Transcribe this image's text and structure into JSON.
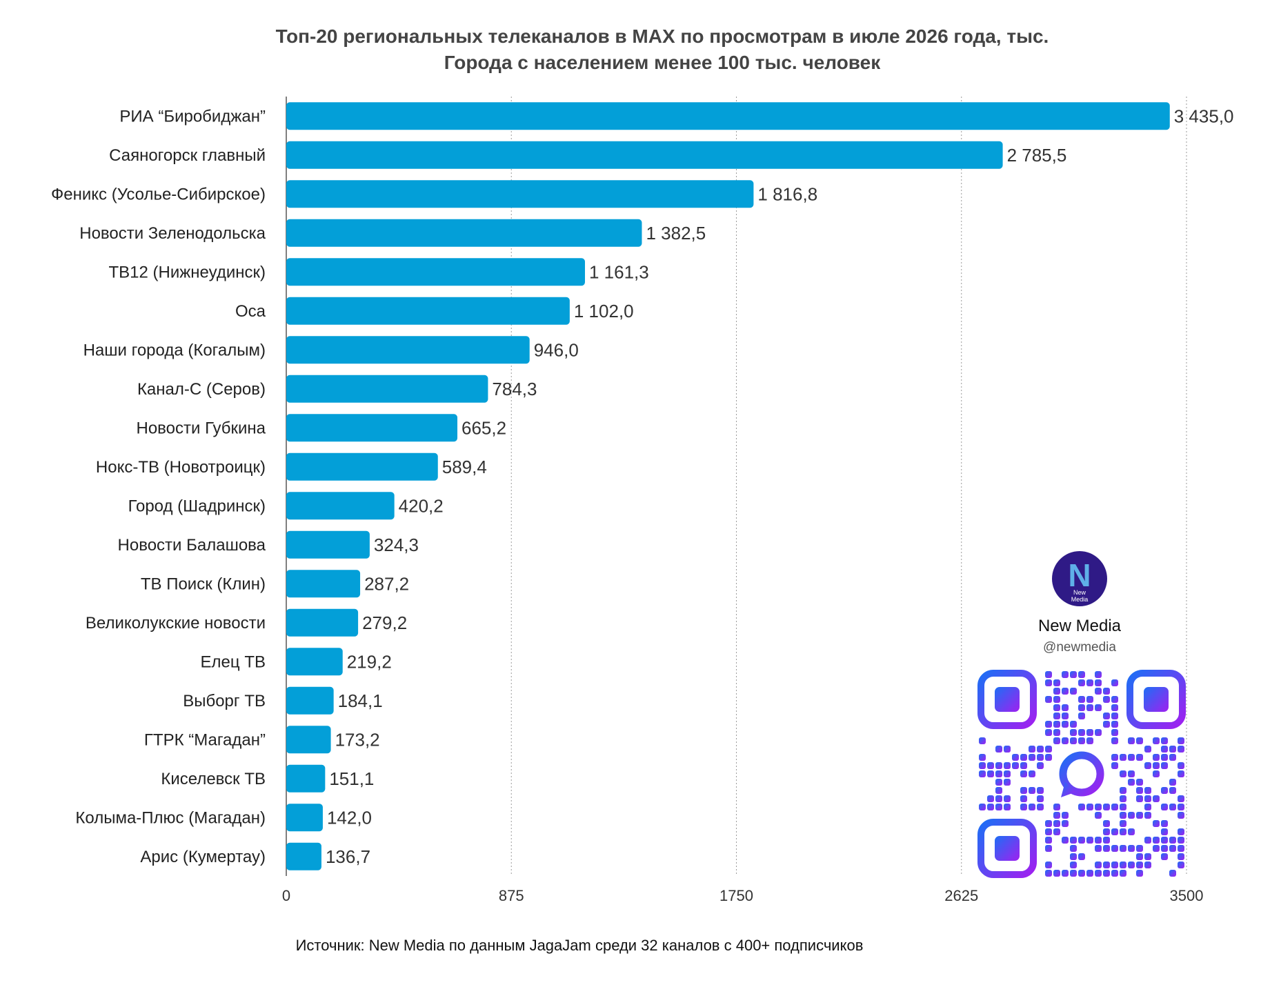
{
  "chart_data": {
    "type": "bar",
    "orientation": "horizontal",
    "title": "Топ-20 региональных телеканалов в MAX по просмотрам в июле 2026 года, тыс.",
    "subtitle": "Города с населением менее 100 тыс. человек",
    "categories": [
      "РИА “Биробиджан”",
      "Саяногорск главный",
      "Феникс (Усолье-Сибирское)",
      "Новости Зеленодольска",
      "ТВ12 (Нижнеудинск)",
      "Оса",
      "Наши города (Когалым)",
      "Канал-С (Серов)",
      "Новости Губкина",
      "Нокс-ТВ (Новотроицк)",
      "Город (Шадринск)",
      "Новости Балашова",
      "ТВ Поиск (Клин)",
      "Великолукские новости",
      "Елец ТВ",
      "Выборг ТВ",
      "ГТРК “Магадан”",
      "Киселевск ТВ",
      "Колыма-Плюс (Магадан)",
      "Арис (Кумертау)"
    ],
    "values": [
      3435.0,
      2785.5,
      1816.8,
      1382.5,
      1161.3,
      1102.0,
      946.0,
      784.3,
      665.2,
      589.4,
      420.2,
      324.3,
      287.2,
      279.2,
      219.2,
      184.1,
      173.2,
      151.1,
      142.0,
      136.7
    ],
    "value_labels": [
      "3 435,0",
      "2 785,5",
      "1 816,8",
      "1 382,5",
      "1 161,3",
      "1 102,0",
      "946,0",
      "784,3",
      "665,2",
      "589,4",
      "420,2",
      "324,3",
      "287,2",
      "279,2",
      "219,2",
      "184,1",
      "173,2",
      "151,1",
      "142,0",
      "136,7"
    ],
    "xlim": [
      0,
      3500
    ],
    "x_ticks": [
      "0",
      "875",
      "1750",
      "2625",
      "3500"
    ],
    "x_tick_values": [
      0,
      875,
      1750,
      2625,
      3500
    ],
    "grid": "vertical dotted",
    "bar_color": "#039fd8",
    "source": "Источник: New Media по данным JagaJam среди 32 каналов с 400+ подписчиков"
  },
  "branding": {
    "name": "New Media",
    "handle": "@newmedia",
    "logo_letter": "N",
    "logo_caption_line1": "New",
    "logo_caption_line2": "Media",
    "logo_color": "#2f1a86",
    "qr_gradient_start": "#1e6ef5",
    "qr_gradient_end": "#a020f0"
  }
}
